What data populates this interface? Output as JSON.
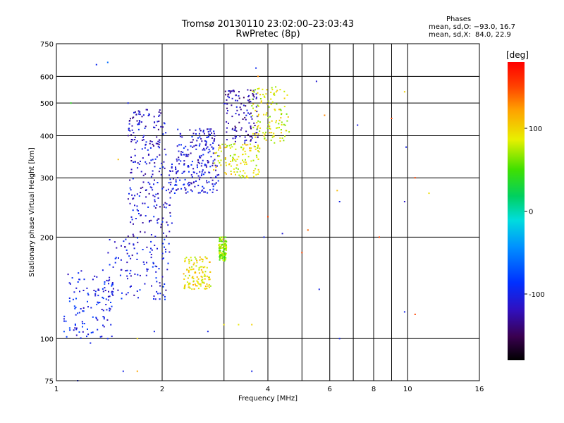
{
  "title_line1": "Tromsø 20130110 23:02:00–23:03:43",
  "title_line2": "RwPretec (8p)",
  "phases": {
    "heading": "Phases",
    "line_o": "mean, sd,O: −93.0, 16.7",
    "line_x": "mean, sd,X:  84.0, 22.9"
  },
  "chart_data": {
    "type": "scatter",
    "xlabel": "Frequency [MHz]",
    "ylabel": "Stationary phase Virtual Height [km]",
    "x_scale": "log",
    "y_scale": "log",
    "xlim": [
      1,
      16
    ],
    "ylim": [
      75,
      750
    ],
    "x_ticks": [
      1,
      2,
      4,
      6,
      8,
      10,
      16
    ],
    "y_ticks": [
      75,
      100,
      200,
      300,
      400,
      500,
      600,
      750
    ],
    "x_grid": [
      2,
      3,
      4,
      5,
      6,
      7,
      8,
      9,
      10
    ],
    "y_grid": [
      100,
      200,
      300,
      400,
      500,
      600
    ],
    "grid": true,
    "colorbar": {
      "label": "[deg]",
      "range": [
        -180,
        180
      ],
      "ticks": [
        100,
        0,
        -100
      ]
    },
    "clusters": [
      {
        "mode": "O",
        "x_range": [
          1.05,
          1.45
        ],
        "y_range": [
          100,
          160
        ],
        "phase": -100
      },
      {
        "mode": "O",
        "x_range": [
          1.4,
          2.1
        ],
        "y_range": [
          130,
          200
        ],
        "phase": -105
      },
      {
        "mode": "O",
        "x_range": [
          1.6,
          2.15
        ],
        "y_range": [
          200,
          330
        ],
        "phase": -110
      },
      {
        "mode": "O",
        "x_range": [
          1.6,
          2.05
        ],
        "y_range": [
          330,
          480
        ],
        "phase": -115
      },
      {
        "mode": "O",
        "x_range": [
          2.1,
          2.9
        ],
        "y_range": [
          270,
          330
        ],
        "phase": -105
      },
      {
        "mode": "O",
        "x_range": [
          2.2,
          2.9
        ],
        "y_range": [
          330,
          420
        ],
        "phase": -110
      },
      {
        "mode": "O",
        "x_range": [
          3.0,
          3.75
        ],
        "y_range": [
          380,
          550
        ],
        "phase": -125
      },
      {
        "mode": "X",
        "x_range": [
          2.8,
          3.8
        ],
        "y_range": [
          300,
          380
        ],
        "phase": 90
      },
      {
        "mode": "X",
        "x_range": [
          3.6,
          4.6
        ],
        "y_range": [
          380,
          560
        ],
        "phase": 85
      },
      {
        "mode": "X",
        "x_range": [
          2.9,
          3.05
        ],
        "y_range": [
          170,
          200
        ],
        "phase": 65
      },
      {
        "mode": "X",
        "x_range": [
          2.3,
          2.75
        ],
        "y_range": [
          140,
          175
        ],
        "phase": 95
      }
    ],
    "scattered_points": [
      {
        "x": 1.3,
        "y": 650,
        "phase": -95
      },
      {
        "x": 1.4,
        "y": 660,
        "phase": -60
      },
      {
        "x": 1.6,
        "y": 500,
        "phase": -100
      },
      {
        "x": 1.1,
        "y": 500,
        "phase": 40
      },
      {
        "x": 1.5,
        "y": 340,
        "phase": 110
      },
      {
        "x": 5.5,
        "y": 580,
        "phase": -110
      },
      {
        "x": 5.8,
        "y": 460,
        "phase": 130
      },
      {
        "x": 7.2,
        "y": 430,
        "phase": -105
      },
      {
        "x": 9.0,
        "y": 450,
        "phase": 150
      },
      {
        "x": 9.8,
        "y": 540,
        "phase": 100
      },
      {
        "x": 9.9,
        "y": 370,
        "phase": -100
      },
      {
        "x": 9.8,
        "y": 255,
        "phase": -115
      },
      {
        "x": 10.5,
        "y": 300,
        "phase": 150
      },
      {
        "x": 11.5,
        "y": 270,
        "phase": 95
      },
      {
        "x": 9.8,
        "y": 120,
        "phase": -100
      },
      {
        "x": 10.5,
        "y": 118,
        "phase": 150
      },
      {
        "x": 8.3,
        "y": 200,
        "phase": 150
      },
      {
        "x": 6.3,
        "y": 275,
        "phase": 110
      },
      {
        "x": 6.4,
        "y": 255,
        "phase": -100
      },
      {
        "x": 5.2,
        "y": 210,
        "phase": 140
      },
      {
        "x": 5.0,
        "y": 180,
        "phase": 150
      },
      {
        "x": 3.9,
        "y": 200,
        "phase": -100
      },
      {
        "x": 4.4,
        "y": 205,
        "phase": -110
      },
      {
        "x": 4.0,
        "y": 230,
        "phase": 150
      },
      {
        "x": 3.3,
        "y": 110,
        "phase": 90
      },
      {
        "x": 3.6,
        "y": 110,
        "phase": 100
      },
      {
        "x": 3.0,
        "y": 110,
        "phase": 95
      },
      {
        "x": 2.7,
        "y": 105,
        "phase": -100
      },
      {
        "x": 1.9,
        "y": 105,
        "phase": -100
      },
      {
        "x": 1.7,
        "y": 100,
        "phase": 100
      },
      {
        "x": 1.4,
        "y": 100,
        "phase": -95
      },
      {
        "x": 1.25,
        "y": 97,
        "phase": -100
      },
      {
        "x": 1.55,
        "y": 80,
        "phase": -100
      },
      {
        "x": 1.7,
        "y": 80,
        "phase": 120
      },
      {
        "x": 3.6,
        "y": 80,
        "phase": -100
      },
      {
        "x": 1.15,
        "y": 75,
        "phase": -100
      },
      {
        "x": 6.4,
        "y": 100,
        "phase": -100
      },
      {
        "x": 5.6,
        "y": 140,
        "phase": -100
      },
      {
        "x": 3.7,
        "y": 635,
        "phase": -95
      },
      {
        "x": 3.75,
        "y": 600,
        "phase": 130
      }
    ]
  }
}
